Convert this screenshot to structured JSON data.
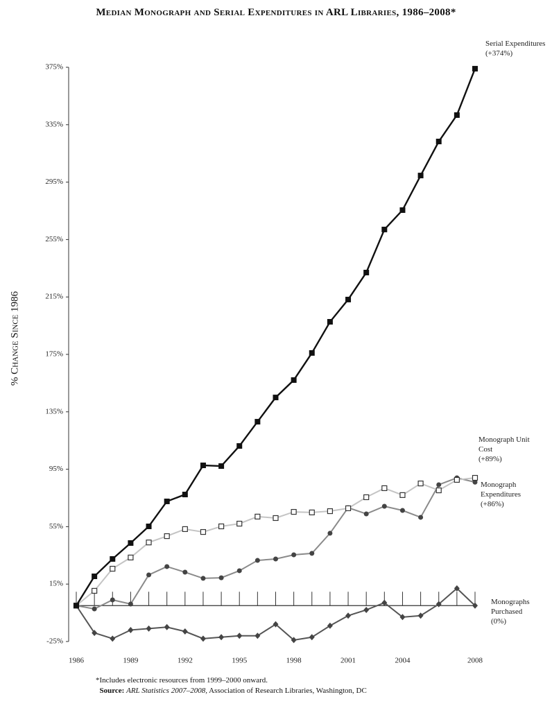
{
  "chart_data": {
    "type": "line",
    "title": "Median Monograph and Serial Expenditures in ARL Libraries, 1986–2008*",
    "y_label": "% Change Since 1986",
    "x": [
      1986,
      1987,
      1988,
      1989,
      1990,
      1991,
      1992,
      1993,
      1994,
      1995,
      1996,
      1997,
      1998,
      1999,
      2000,
      2001,
      2002,
      2003,
      2004,
      2005,
      2006,
      2007,
      2008
    ],
    "xlim": [
      1986,
      2008
    ],
    "xticks": [
      1986,
      1989,
      1992,
      1995,
      1998,
      2001,
      2004,
      2008
    ],
    "ylim": [
      -25,
      375
    ],
    "yticks": [
      {
        "value": -25,
        "label": "-25%"
      },
      {
        "value": 15,
        "label": "15%"
      },
      {
        "value": 55,
        "label": "55%"
      },
      {
        "value": 95,
        "label": "95%"
      },
      {
        "value": 135,
        "label": "135%"
      },
      {
        "value": 175,
        "label": "175%"
      },
      {
        "value": 215,
        "label": "215%"
      },
      {
        "value": 255,
        "label": "255%"
      },
      {
        "value": 295,
        "label": "295%"
      },
      {
        "value": 335,
        "label": "335%"
      },
      {
        "value": 375,
        "label": "375%"
      }
    ],
    "series": [
      {
        "name": "Serial Expenditures",
        "change": "(+374%)",
        "color": "#111111",
        "marker": "square",
        "values": [
          0,
          20.4,
          32.5,
          43.6,
          55.2,
          72.6,
          77.4,
          97.7,
          97.2,
          111.2,
          128.1,
          145,
          157.1,
          176,
          197.7,
          213.2,
          232,
          262,
          275.5,
          299.6,
          323.3,
          341.7,
          374
        ]
      },
      {
        "name": "Monograph Unit Cost",
        "change": "(+89%)",
        "color": "#c4c4c4",
        "marker": "open-square",
        "values": [
          0,
          10.3,
          25.7,
          33.5,
          44,
          48.4,
          53.3,
          51.3,
          55.2,
          57.1,
          62,
          61,
          65.3,
          64.9,
          65.8,
          67.8,
          75.5,
          81.8,
          77,
          85.1,
          80.3,
          87.6,
          89
        ]
      },
      {
        "name": "Monograph Expenditures",
        "change": "(+86%)",
        "color": "#8a8a8a",
        "marker": "circle",
        "values": [
          0,
          -2.3,
          4,
          1.1,
          21.4,
          27.2,
          23.3,
          19,
          19.4,
          24.3,
          31.5,
          32.5,
          35.4,
          36.4,
          50.4,
          68.2,
          63.9,
          69.2,
          66.3,
          61.5,
          84.2,
          89,
          86
        ]
      },
      {
        "name": "Monographs Purchased",
        "change": "(0%)",
        "color": "#555555",
        "marker": "diamond",
        "values": [
          0,
          -19,
          -23,
          -17,
          -16,
          -15,
          -18,
          -23,
          -22,
          -21,
          -21,
          -13,
          -24,
          -22,
          -14,
          -7,
          -3,
          2,
          -8,
          -7,
          1,
          12,
          0
        ]
      }
    ],
    "footnote": "*Includes electronic resources from 1999–2000 onward.",
    "source_label": "Source:",
    "source_title": "ARL Statistics 2007–2008,",
    "source_rest": "Association of Research Libraries, Washington, DC"
  }
}
